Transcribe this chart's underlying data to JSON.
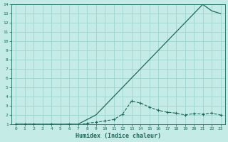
{
  "xlabel": "Humidex (Indice chaleur)",
  "background_color": "#c5ebe6",
  "grid_color": "#9dd4ce",
  "line_color": "#1a6b5a",
  "xlim": [
    -0.5,
    23.5
  ],
  "ylim": [
    1,
    14
  ],
  "xticks": [
    0,
    1,
    2,
    3,
    4,
    5,
    6,
    7,
    8,
    9,
    10,
    11,
    12,
    13,
    14,
    15,
    16,
    17,
    18,
    19,
    20,
    21,
    22,
    23
  ],
  "yticks": [
    1,
    2,
    3,
    4,
    5,
    6,
    7,
    8,
    9,
    10,
    11,
    12,
    13,
    14
  ],
  "line1_x": [
    0,
    1,
    2,
    3,
    4,
    5,
    6,
    7,
    8,
    9,
    10,
    11,
    12,
    13,
    14,
    15,
    16,
    17,
    18,
    19,
    20,
    21,
    22,
    23
  ],
  "line1_y": [
    1.0,
    1.0,
    1.0,
    1.0,
    1.0,
    1.0,
    1.0,
    1.0,
    1.5,
    2.0,
    3.0,
    4.0,
    5.0,
    6.0,
    7.0,
    8.0,
    9.0,
    10.0,
    11.0,
    12.0,
    13.0,
    14.0,
    13.3,
    13.0
  ],
  "line2_x": [
    0,
    1,
    2,
    3,
    4,
    5,
    6,
    7,
    8,
    9,
    10,
    11,
    12,
    13,
    14,
    15,
    16,
    17,
    18,
    19,
    20,
    21,
    22,
    23
  ],
  "line2_y": [
    1.0,
    1.0,
    1.0,
    0.95,
    1.0,
    0.9,
    1.0,
    0.9,
    1.1,
    1.2,
    1.35,
    1.5,
    2.1,
    3.5,
    3.3,
    2.85,
    2.5,
    2.3,
    2.2,
    2.0,
    2.15,
    2.1,
    2.2,
    2.0
  ]
}
